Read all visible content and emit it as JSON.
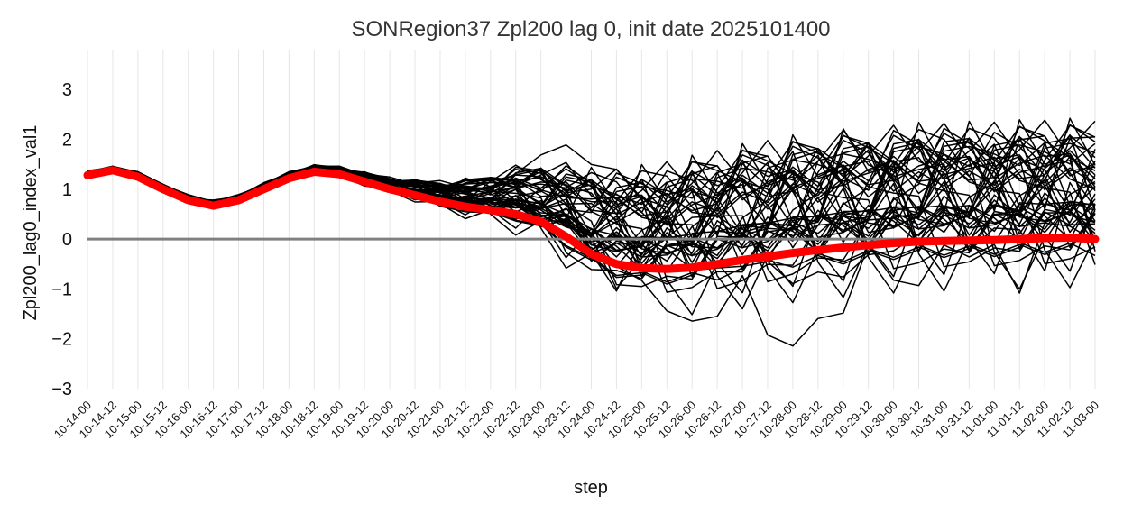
{
  "chart_data": {
    "type": "line",
    "title": "SONRegion37 Zpl200 lag 0, init date 2025101400",
    "xlabel": "step",
    "ylabel": "Zpl200_lag0_index_val1",
    "categories": [
      "10-14-00",
      "10-14-12",
      "10-15-00",
      "10-15-12",
      "10-16-00",
      "10-16-12",
      "10-17-00",
      "10-17-12",
      "10-18-00",
      "10-18-12",
      "10-19-00",
      "10-19-12",
      "10-20-00",
      "10-20-12",
      "10-21-00",
      "10-21-12",
      "10-22-00",
      "10-22-12",
      "10-23-00",
      "10-23-12",
      "10-24-00",
      "10-24-12",
      "10-25-00",
      "10-25-12",
      "10-26-00",
      "10-26-12",
      "10-27-00",
      "10-27-12",
      "10-28-00",
      "10-28-12",
      "10-29-00",
      "10-29-12",
      "10-30-00",
      "10-30-12",
      "10-31-00",
      "10-31-12",
      "11-01-00",
      "11-01-12",
      "11-02-00",
      "11-02-12",
      "11-03-00"
    ],
    "ylim": [
      -3,
      3.8
    ],
    "yticks": [
      -3,
      -2,
      -1,
      0,
      1,
      2,
      3
    ],
    "grid": "vertical",
    "zero_line": true,
    "ensemble_member_count": 50,
    "series": [
      {
        "role": "mean",
        "color": "#ff0000",
        "values": [
          1.28,
          1.38,
          1.25,
          1.0,
          0.78,
          0.67,
          0.78,
          1.0,
          1.22,
          1.35,
          1.3,
          1.15,
          1.0,
          0.88,
          0.75,
          0.65,
          0.58,
          0.5,
          0.35,
          0.05,
          -0.3,
          -0.5,
          -0.58,
          -0.6,
          -0.57,
          -0.5,
          -0.42,
          -0.35,
          -0.28,
          -0.22,
          -0.17,
          -0.12,
          -0.08,
          -0.05,
          -0.04,
          -0.03,
          -0.02,
          0.0,
          0.02,
          0.03,
          0.0
        ]
      }
    ],
    "colors": {
      "members": "#000000",
      "mean": "#ff0000",
      "zero_line": "#808080",
      "grid": "#e6e6e6"
    }
  }
}
